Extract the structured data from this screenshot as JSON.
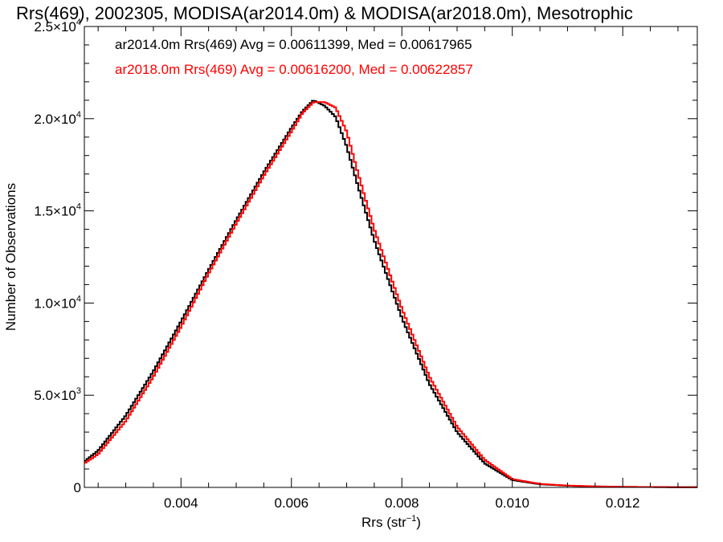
{
  "chart_data": {
    "type": "line",
    "title": "Rrs(469), 2002305, MODISA(ar2014.0m) & MODISA(ar2018.0m), Mesotrophic",
    "xlabel": "Rrs (str",
    "xlabel_sup": "−1",
    "xlabel_end": ")",
    "ylabel": "Number of Observations",
    "xlim": [
      0.00225,
      0.01335
    ],
    "ylim": [
      0,
      25000
    ],
    "x_ticks": [
      {
        "value": 0.004,
        "label": "0.004"
      },
      {
        "value": 0.006,
        "label": "0.006"
      },
      {
        "value": 0.008,
        "label": "0.008"
      },
      {
        "value": 0.01,
        "label": "0.010"
      },
      {
        "value": 0.012,
        "label": "0.012"
      }
    ],
    "y_ticks": [
      {
        "value": 0,
        "mant": "0",
        "exp": ""
      },
      {
        "value": 5000,
        "mant": "5.0×10",
        "exp": "3"
      },
      {
        "value": 10000,
        "mant": "1.0×10",
        "exp": "4"
      },
      {
        "value": 15000,
        "mant": "1.5×10",
        "exp": "4"
      },
      {
        "value": 20000,
        "mant": "2.0×10",
        "exp": "4"
      },
      {
        "value": 25000,
        "mant": "2.5×10",
        "exp": "4"
      }
    ],
    "grid": false,
    "annotations": [
      {
        "text": "ar2014.0m Rrs(469) Avg = 0.00611399, Med = 0.00617965",
        "color": "#000000"
      },
      {
        "text": "ar2018.0m Rrs(469) Avg = 0.00616200, Med = 0.00622857",
        "color": "#ff0000"
      }
    ],
    "series": [
      {
        "color": "#000000",
        "style": "step",
        "x": [
          0.00225,
          0.0025,
          0.003,
          0.0035,
          0.004,
          0.0045,
          0.005,
          0.0055,
          0.006,
          0.0062,
          0.0064,
          0.0066,
          0.0068,
          0.007,
          0.0072,
          0.0075,
          0.008,
          0.0085,
          0.009,
          0.0095,
          0.01,
          0.0105,
          0.011,
          0.0115,
          0.012,
          0.0125,
          0.013,
          0.01335
        ],
        "y": [
          1400,
          2000,
          3900,
          6300,
          9000,
          11800,
          14500,
          17100,
          19500,
          20400,
          21000,
          20700,
          20100,
          18500,
          16400,
          13400,
          9200,
          5600,
          3000,
          1300,
          400,
          170,
          90,
          50,
          30,
          20,
          10,
          10
        ]
      },
      {
        "color": "#ff0000",
        "style": "step",
        "x": [
          0.00225,
          0.0025,
          0.003,
          0.0035,
          0.004,
          0.0045,
          0.005,
          0.0055,
          0.006,
          0.0062,
          0.0064,
          0.0066,
          0.0068,
          0.007,
          0.0072,
          0.0075,
          0.008,
          0.0085,
          0.009,
          0.0095,
          0.01,
          0.0105,
          0.011,
          0.0115,
          0.012,
          0.0125,
          0.013,
          0.01335
        ],
        "y": [
          1300,
          1800,
          3600,
          6000,
          8700,
          11600,
          14300,
          16900,
          19300,
          20300,
          20900,
          20900,
          20600,
          19300,
          17100,
          14000,
          9700,
          6000,
          3300,
          1500,
          450,
          190,
          100,
          55,
          30,
          20,
          10,
          10
        ]
      }
    ]
  }
}
